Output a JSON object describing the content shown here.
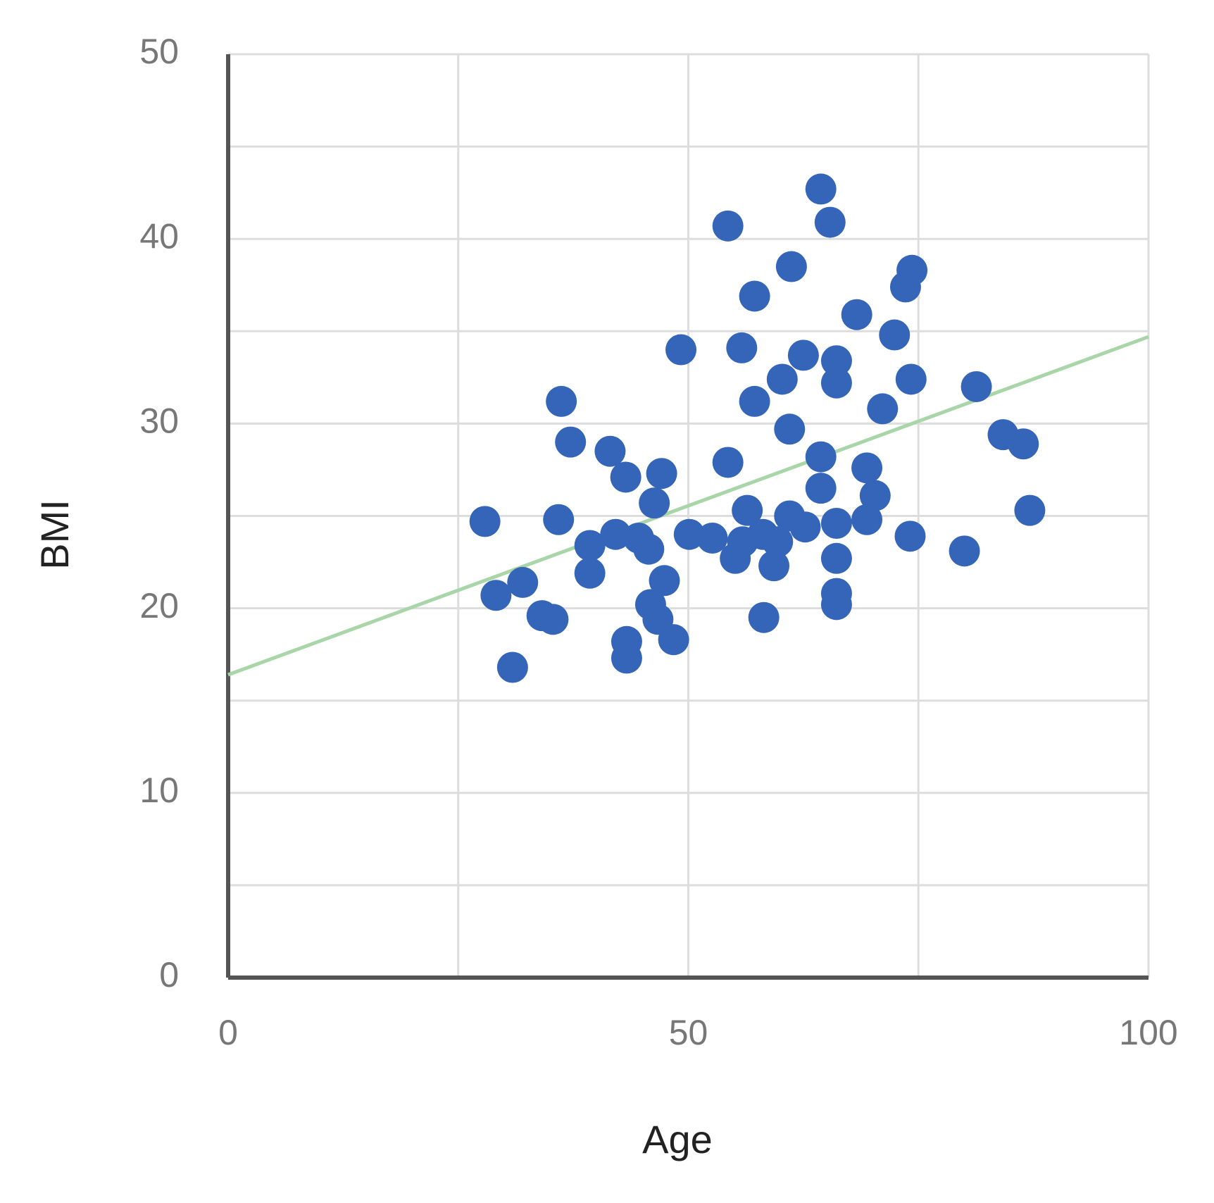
{
  "chart_data": {
    "type": "scatter",
    "x_label": "Age",
    "y_label": "BMI",
    "xlim": [
      0,
      100
    ],
    "xticks": [
      0,
      50,
      100
    ],
    "ylim": [
      0,
      50
    ],
    "yticks": [
      0,
      10,
      20,
      30,
      40,
      50
    ],
    "x_minor_gridlines": [
      25,
      75
    ],
    "y_minor_gridlines": [
      5,
      15,
      25,
      35,
      45
    ],
    "grid": true,
    "series": [
      {
        "color": "#3565b8",
        "x": [
          27.9,
          29.1,
          32.0,
          30.9,
          34.1,
          35.3,
          36.2,
          35.9,
          37.2,
          39.3,
          39.3,
          41.5,
          43.2,
          42.1,
          44.6,
          45.7,
          47.1,
          46.3,
          47.4,
          45.9,
          46.7,
          48.4,
          43.3,
          43.3,
          49.2,
          54.3,
          54.3,
          55.8,
          57.2,
          57.2,
          61.2,
          64.4,
          65.4,
          61.0,
          60.2,
          62.5,
          66.1,
          66.1,
          68.3,
          72.4,
          73.6,
          74.3,
          74.2,
          71.1,
          64.4,
          64.4,
          69.4,
          70.3,
          69.4,
          66.1,
          66.1,
          66.1,
          66.1,
          74.1,
          80.0,
          81.3,
          84.2,
          86.4,
          87.1,
          58.2,
          50.1,
          52.6,
          55.1,
          56.4,
          58.1,
          59.3,
          61.0,
          62.7,
          55.9,
          59.7
        ],
        "values": [
          24.7,
          20.7,
          21.4,
          16.8,
          19.6,
          19.4,
          31.2,
          24.8,
          29.0,
          23.4,
          21.9,
          28.5,
          27.1,
          24.0,
          23.8,
          23.2,
          27.3,
          25.7,
          21.5,
          20.2,
          19.4,
          18.3,
          18.2,
          17.3,
          34.0,
          40.7,
          27.9,
          34.1,
          36.9,
          31.2,
          38.5,
          42.7,
          40.9,
          29.7,
          32.4,
          33.7,
          33.4,
          32.2,
          35.9,
          34.8,
          37.4,
          38.3,
          32.4,
          30.8,
          28.2,
          26.5,
          27.6,
          26.1,
          24.8,
          24.6,
          22.7,
          20.8,
          20.2,
          23.9,
          23.1,
          32.0,
          29.4,
          28.9,
          25.3,
          19.5,
          24.0,
          23.8,
          22.7,
          25.3,
          24.0,
          22.3,
          25.0,
          24.4,
          23.6,
          23.6
        ]
      }
    ],
    "trendline": {
      "x": [
        0,
        100
      ],
      "values": [
        16.4,
        34.7
      ],
      "color": "#a9d6a9"
    }
  }
}
